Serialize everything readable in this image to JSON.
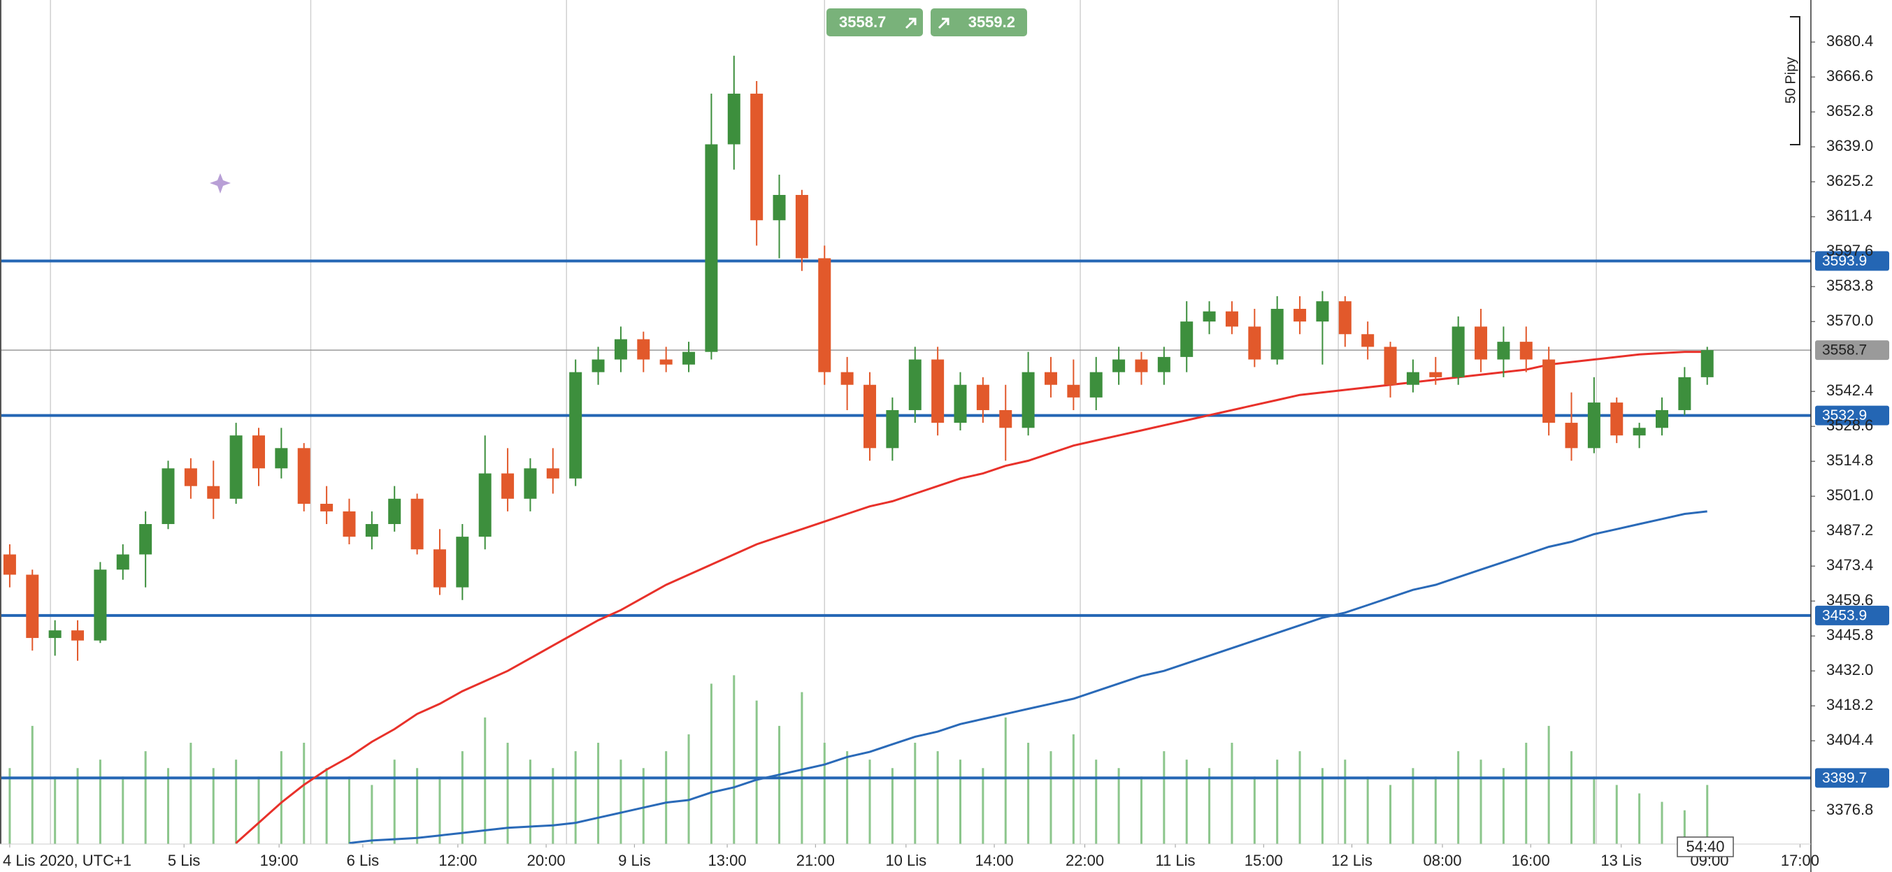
{
  "chart_data": {
    "type": "candlestick",
    "open": [
      3478,
      3470,
      3445,
      3448,
      3444,
      3472,
      3478,
      3490,
      3512,
      3505,
      3500,
      3525,
      3512,
      3520,
      3498,
      3495,
      3485,
      3490,
      3500,
      3480,
      3465,
      3485,
      3510,
      3500,
      3512,
      3508,
      3550,
      3555,
      3563,
      3555,
      3553,
      3558,
      3640,
      3660,
      3610,
      3620,
      3595,
      3550,
      3545,
      3520,
      3535,
      3555,
      3530,
      3545,
      3535,
      3528,
      3550,
      3545,
      3540,
      3550,
      3555,
      3550,
      3556,
      3570,
      3574,
      3568,
      3555,
      3575,
      3570,
      3578,
      3565,
      3560,
      3545,
      3550,
      3548,
      3568,
      3555,
      3562,
      3555,
      3530,
      3520,
      3538,
      3525,
      3528,
      3535,
      3548
    ],
    "high": [
      3482,
      3472,
      3452,
      3452,
      3475,
      3482,
      3495,
      3515,
      3516,
      3515,
      3530,
      3528,
      3528,
      3522,
      3505,
      3500,
      3495,
      3505,
      3502,
      3488,
      3490,
      3525,
      3520,
      3516,
      3520,
      3555,
      3560,
      3568,
      3566,
      3560,
      3562,
      3660,
      3675,
      3665,
      3628,
      3622,
      3600,
      3556,
      3550,
      3540,
      3560,
      3560,
      3550,
      3548,
      3545,
      3558,
      3556,
      3555,
      3556,
      3560,
      3558,
      3560,
      3578,
      3578,
      3578,
      3575,
      3580,
      3580,
      3582,
      3580,
      3570,
      3562,
      3555,
      3556,
      3572,
      3575,
      3568,
      3568,
      3560,
      3542,
      3548,
      3540,
      3530,
      3540,
      3552,
      3560
    ],
    "low": [
      3465,
      3440,
      3438,
      3436,
      3443,
      3468,
      3465,
      3488,
      3500,
      3492,
      3498,
      3505,
      3508,
      3495,
      3490,
      3482,
      3480,
      3487,
      3478,
      3462,
      3460,
      3480,
      3495,
      3495,
      3502,
      3505,
      3545,
      3550,
      3550,
      3550,
      3550,
      3555,
      3630,
      3600,
      3595,
      3590,
      3545,
      3535,
      3515,
      3515,
      3530,
      3525,
      3527,
      3530,
      3515,
      3525,
      3540,
      3535,
      3535,
      3545,
      3545,
      3545,
      3550,
      3565,
      3565,
      3552,
      3553,
      3565,
      3553,
      3560,
      3555,
      3540,
      3542,
      3545,
      3545,
      3550,
      3548,
      3550,
      3525,
      3515,
      3518,
      3522,
      3520,
      3525,
      3533,
      3545
    ],
    "close": [
      3470,
      3445,
      3448,
      3444,
      3472,
      3478,
      3490,
      3512,
      3505,
      3500,
      3525,
      3512,
      3520,
      3498,
      3495,
      3485,
      3490,
      3500,
      3480,
      3465,
      3485,
      3510,
      3500,
      3512,
      3508,
      3550,
      3555,
      3563,
      3555,
      3553,
      3558,
      3640,
      3660,
      3610,
      3620,
      3595,
      3550,
      3545,
      3520,
      3535,
      3555,
      3530,
      3545,
      3535,
      3528,
      3550,
      3545,
      3540,
      3550,
      3555,
      3550,
      3556,
      3570,
      3574,
      3568,
      3555,
      3575,
      3570,
      3578,
      3565,
      3560,
      3545,
      3550,
      3548,
      3568,
      3555,
      3562,
      3555,
      3530,
      3520,
      3538,
      3525,
      3528,
      3535,
      3548,
      3558.7
    ],
    "colors": {
      "up": "#3d8f3d",
      "down": "#e2592b"
    },
    "volume": [
      45,
      70,
      40,
      45,
      50,
      40,
      55,
      45,
      60,
      45,
      50,
      40,
      55,
      60,
      45,
      40,
      35,
      50,
      45,
      40,
      55,
      75,
      60,
      50,
      45,
      55,
      60,
      50,
      45,
      55,
      65,
      95,
      100,
      85,
      70,
      90,
      60,
      55,
      50,
      45,
      60,
      55,
      50,
      45,
      75,
      60,
      55,
      65,
      50,
      45,
      40,
      55,
      50,
      45,
      60,
      40,
      50,
      55,
      45,
      50,
      40,
      35,
      45,
      40,
      55,
      50,
      45,
      60,
      70,
      55,
      40,
      35,
      30,
      25,
      20,
      35
    ],
    "volume_color": "#8cc68c",
    "volume_ylim": [
      0,
      500
    ],
    "lines": [
      {
        "color": "#e8312a",
        "values": [
          null,
          null,
          null,
          null,
          null,
          null,
          null,
          null,
          null,
          null,
          3364,
          3372,
          3380,
          3387,
          3393,
          3398,
          3404,
          3409,
          3415,
          3419,
          3424,
          3428,
          3432,
          3437,
          3442,
          3447,
          3452,
          3456,
          3461,
          3466,
          3470,
          3474,
          3478,
          3482,
          3485,
          3488,
          3491,
          3494,
          3497,
          3499,
          3502,
          3505,
          3508,
          3510,
          3513,
          3515,
          3518,
          3521,
          3523,
          3525,
          3527,
          3529,
          3531,
          3533,
          3535,
          3537,
          3539,
          3541,
          3542,
          3543,
          3544,
          3545,
          3546,
          3547,
          3548,
          3549,
          3550,
          3551,
          3553,
          3554,
          3555,
          3556,
          3557,
          3557.5,
          3558,
          3558
        ]
      },
      {
        "color": "#2a6ab8",
        "values": [
          null,
          null,
          null,
          null,
          null,
          null,
          null,
          null,
          null,
          null,
          null,
          null,
          null,
          null,
          null,
          3364,
          3365,
          3365.5,
          3366,
          3367,
          3368,
          3369,
          3370,
          3370.5,
          3371,
          3372,
          3374,
          3376,
          3378,
          3380,
          3381,
          3384,
          3386,
          3389,
          3391,
          3393,
          3395,
          3398,
          3400,
          3403,
          3406,
          3408,
          3411,
          3413,
          3415,
          3417,
          3419,
          3421,
          3424,
          3427,
          3430,
          3432,
          3435,
          3438,
          3441,
          3444,
          3447,
          3450,
          3453,
          3455,
          3458,
          3461,
          3464,
          3466,
          3469,
          3472,
          3475,
          3478,
          3481,
          3483,
          3486,
          3488,
          3490,
          3492,
          3494,
          3495
        ]
      }
    ],
    "levels": [
      {
        "value": 3593.9,
        "color": "#2466b4"
      },
      {
        "value": 3532.9,
        "color": "#2466b4"
      },
      {
        "value": 3453.9,
        "color": "#2466b4"
      },
      {
        "value": 3389.7,
        "color": "#2466b4"
      }
    ],
    "last_price": {
      "value": 3558.7,
      "color": "#9a9a9a"
    },
    "ylim": [
      3363.6,
      3697.0
    ],
    "yticks": [
      3376.8,
      3404.4,
      3418.2,
      {
        "value": 3432,
        "label": "3432.0"
      },
      3445.8,
      3459.6,
      3473.4,
      3487.2,
      {
        "value": 3501,
        "label": "3501.0"
      },
      3514.8,
      3528.6,
      3542.4,
      {
        "value": 3570,
        "label": "3570.0"
      },
      3583.8,
      3597.6,
      3611.4,
      3625.2,
      {
        "value": 3639,
        "label": "3639.0"
      },
      3652.8,
      3666.6,
      3680.4
    ],
    "xlim": [
      -0.43,
      79.58
    ],
    "xticks": [
      {
        "value": 0,
        "label": "4 Lis 2020, UTC+1"
      },
      {
        "value": 7.7,
        "label": "5 Lis"
      },
      {
        "value": 11.9,
        "label": "19:00"
      },
      {
        "value": 15.6,
        "label": "6 Lis"
      },
      {
        "value": 19.8,
        "label": "12:00"
      },
      {
        "value": 23.7,
        "label": "20:00"
      },
      {
        "value": 27.6,
        "label": "9 Lis"
      },
      {
        "value": 31.7,
        "label": "13:00"
      },
      {
        "value": 35.6,
        "label": "21:00"
      },
      {
        "value": 39.6,
        "label": "10 Lis"
      },
      {
        "value": 43.5,
        "label": "14:00"
      },
      {
        "value": 47.5,
        "label": "22:00"
      },
      {
        "value": 51.5,
        "label": "11 Lis"
      },
      {
        "value": 55.4,
        "label": "15:00"
      },
      {
        "value": 59.3,
        "label": "12 Lis"
      },
      {
        "value": 63.3,
        "label": "08:00"
      },
      {
        "value": 67.2,
        "label": "16:00"
      },
      {
        "value": 71.2,
        "label": "13 Lis"
      },
      {
        "value": 75.1,
        "label": "09:00"
      },
      {
        "value": 79.1,
        "label": "17:00"
      }
    ],
    "xgrid": [
      1.8,
      13.3,
      24.6,
      36.0,
      47.3,
      58.7,
      70.1
    ],
    "grid": true
  },
  "toolbar": {
    "sell": "3558.7",
    "buy": "3559.2"
  },
  "range_label": "50 Pipy",
  "countdown": "54:40"
}
